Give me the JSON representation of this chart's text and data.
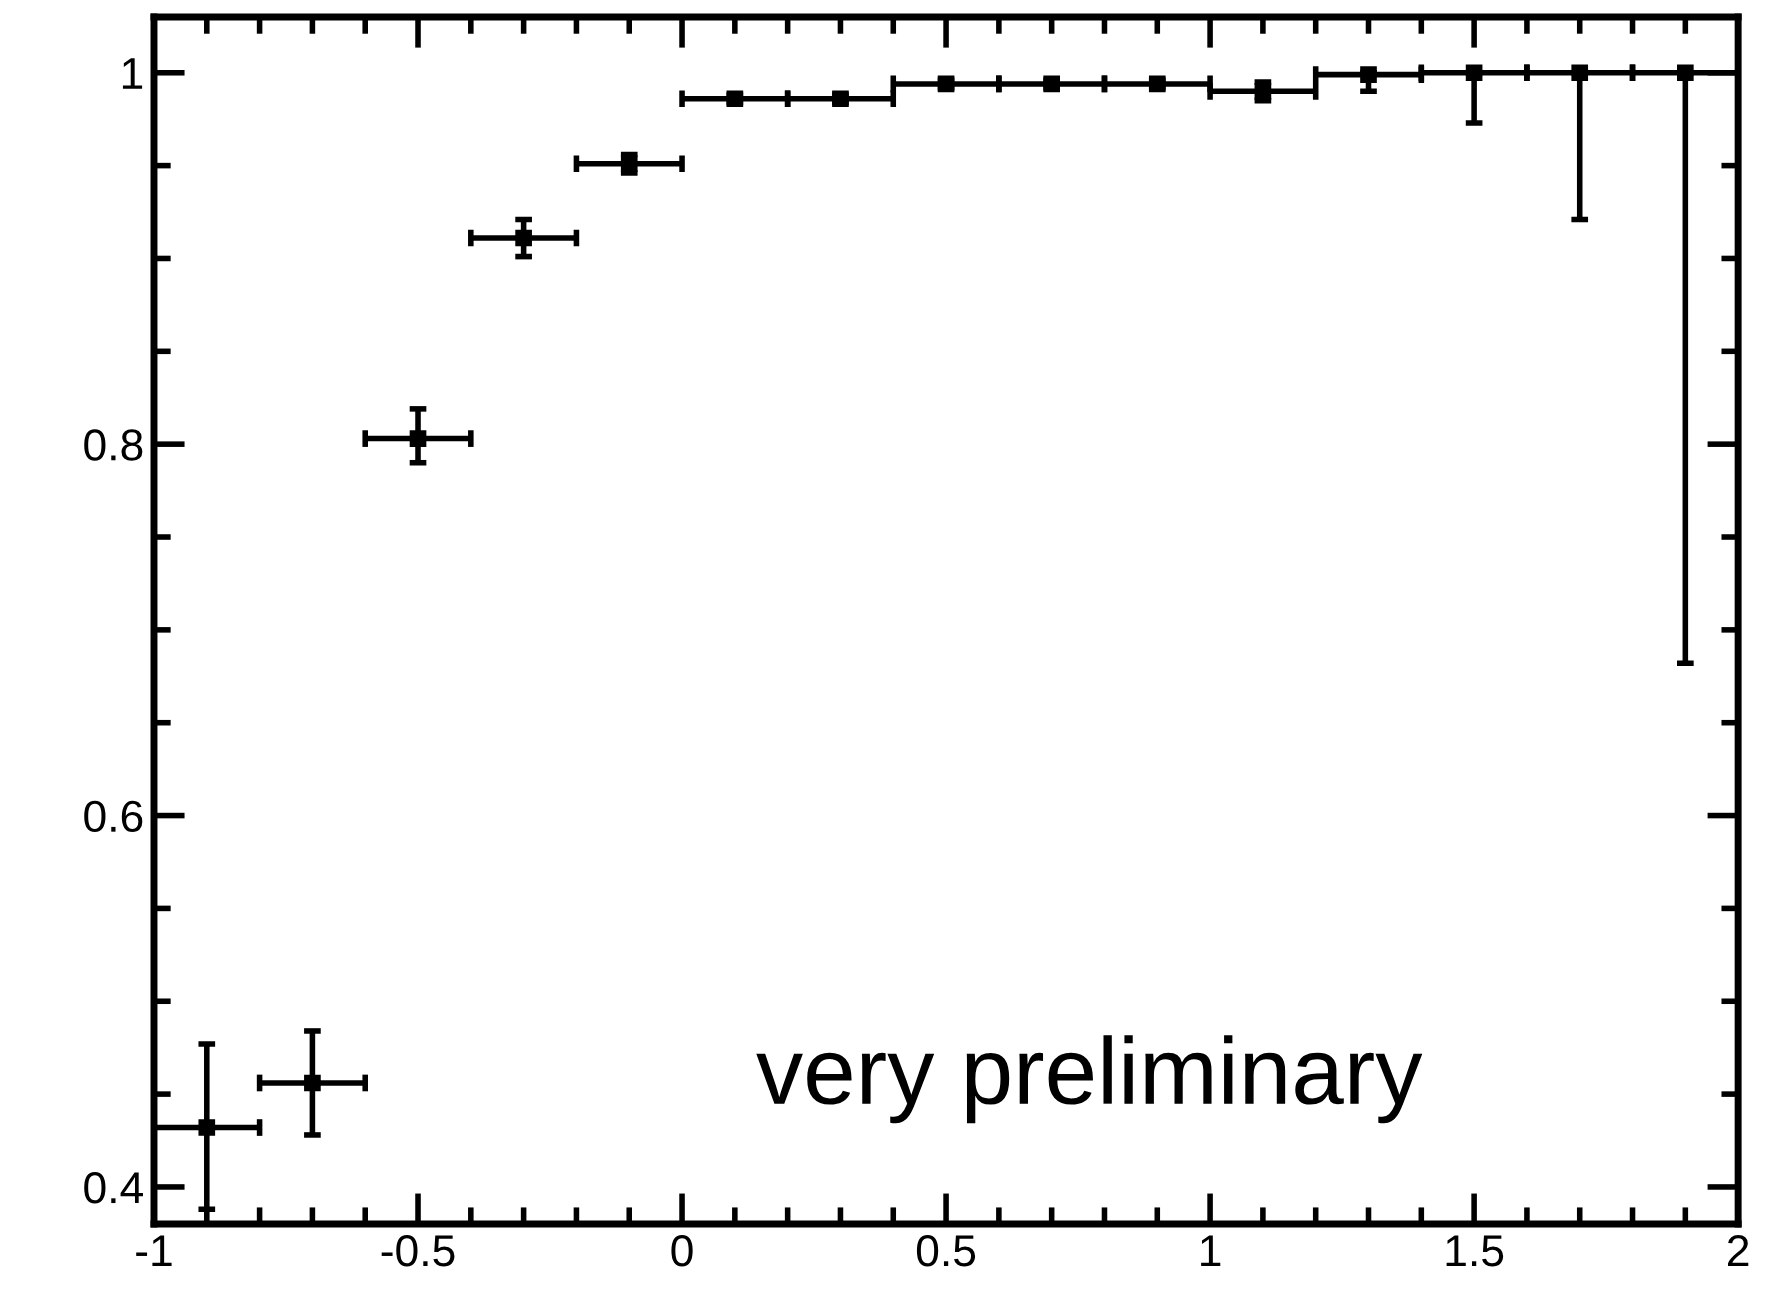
{
  "chart_data": {
    "type": "scatter",
    "x": [
      -0.9,
      -0.7,
      -0.5,
      -0.3,
      -0.1,
      0.1,
      0.3,
      0.5,
      0.7,
      0.9,
      1.1,
      1.3,
      1.5,
      1.7,
      1.9
    ],
    "series": [
      {
        "color": "#000000",
        "values": [
          0.432,
          0.456,
          0.803,
          0.911,
          0.951,
          0.986,
          0.986,
          0.994,
          0.994,
          0.994,
          0.99,
          0.999,
          1.0,
          1.0,
          1.0
        ],
        "errors": [
          [
            0.388,
            0.477
          ],
          [
            0.428,
            0.484
          ],
          [
            0.79,
            0.819
          ],
          [
            0.901,
            0.921
          ],
          [
            0.946,
            0.956
          ],
          [
            0.984,
            0.988
          ],
          [
            0.984,
            0.988
          ],
          [
            0.992,
            0.996
          ],
          [
            0.992,
            0.996
          ],
          [
            0.992,
            0.996
          ],
          [
            0.985,
            0.995
          ],
          [
            0.99,
            1.0
          ],
          [
            0.973,
            1.0
          ],
          [
            0.921,
            1.0
          ],
          [
            0.682,
            1.0
          ]
        ],
        "xerrors": [
          0.1,
          0.1,
          0.1,
          0.1,
          0.1,
          0.1,
          0.1,
          0.1,
          0.1,
          0.1,
          0.1,
          0.1,
          0.1,
          0.1,
          0.1
        ]
      }
    ],
    "marker": "square",
    "xlim": [
      -1,
      2
    ],
    "ylim": [
      0.38,
      1.03
    ],
    "xticks": [
      -1,
      {
        "value": -0.9,
        "label": null
      },
      {
        "value": -0.8,
        "label": null
      },
      {
        "value": -0.7,
        "label": null
      },
      {
        "value": -0.6,
        "label": null
      },
      -0.5,
      {
        "value": -0.4,
        "label": null
      },
      {
        "value": -0.3,
        "label": null
      },
      {
        "value": -0.2,
        "label": null
      },
      {
        "value": -0.1,
        "label": null
      },
      0,
      {
        "value": 0.1,
        "label": null
      },
      {
        "value": 0.2,
        "label": null
      },
      {
        "value": 0.3,
        "label": null
      },
      {
        "value": 0.4,
        "label": null
      },
      0.5,
      {
        "value": 0.6,
        "label": null
      },
      {
        "value": 0.7,
        "label": null
      },
      {
        "value": 0.8,
        "label": null
      },
      {
        "value": 0.9,
        "label": null
      },
      1,
      {
        "value": 1.1,
        "label": null
      },
      {
        "value": 1.2,
        "label": null
      },
      {
        "value": 1.3,
        "label": null
      },
      {
        "value": 1.4,
        "label": null
      },
      1.5,
      {
        "value": 1.6,
        "label": null
      },
      {
        "value": 1.7,
        "label": null
      },
      {
        "value": 1.8,
        "label": null
      },
      {
        "value": 1.9,
        "label": null
      },
      2
    ],
    "yticks": [
      0.4,
      {
        "value": 0.45,
        "label": null
      },
      {
        "value": 0.5,
        "label": null
      },
      {
        "value": 0.55,
        "label": null
      },
      0.6,
      {
        "value": 0.65,
        "label": null
      },
      {
        "value": 0.7,
        "label": null
      },
      {
        "value": 0.75,
        "label": null
      },
      0.8,
      {
        "value": 0.85,
        "label": null
      },
      {
        "value": 0.9,
        "label": null
      },
      {
        "value": 0.95,
        "label": null
      },
      1
    ],
    "annotations": [
      "very preliminary"
    ]
  }
}
